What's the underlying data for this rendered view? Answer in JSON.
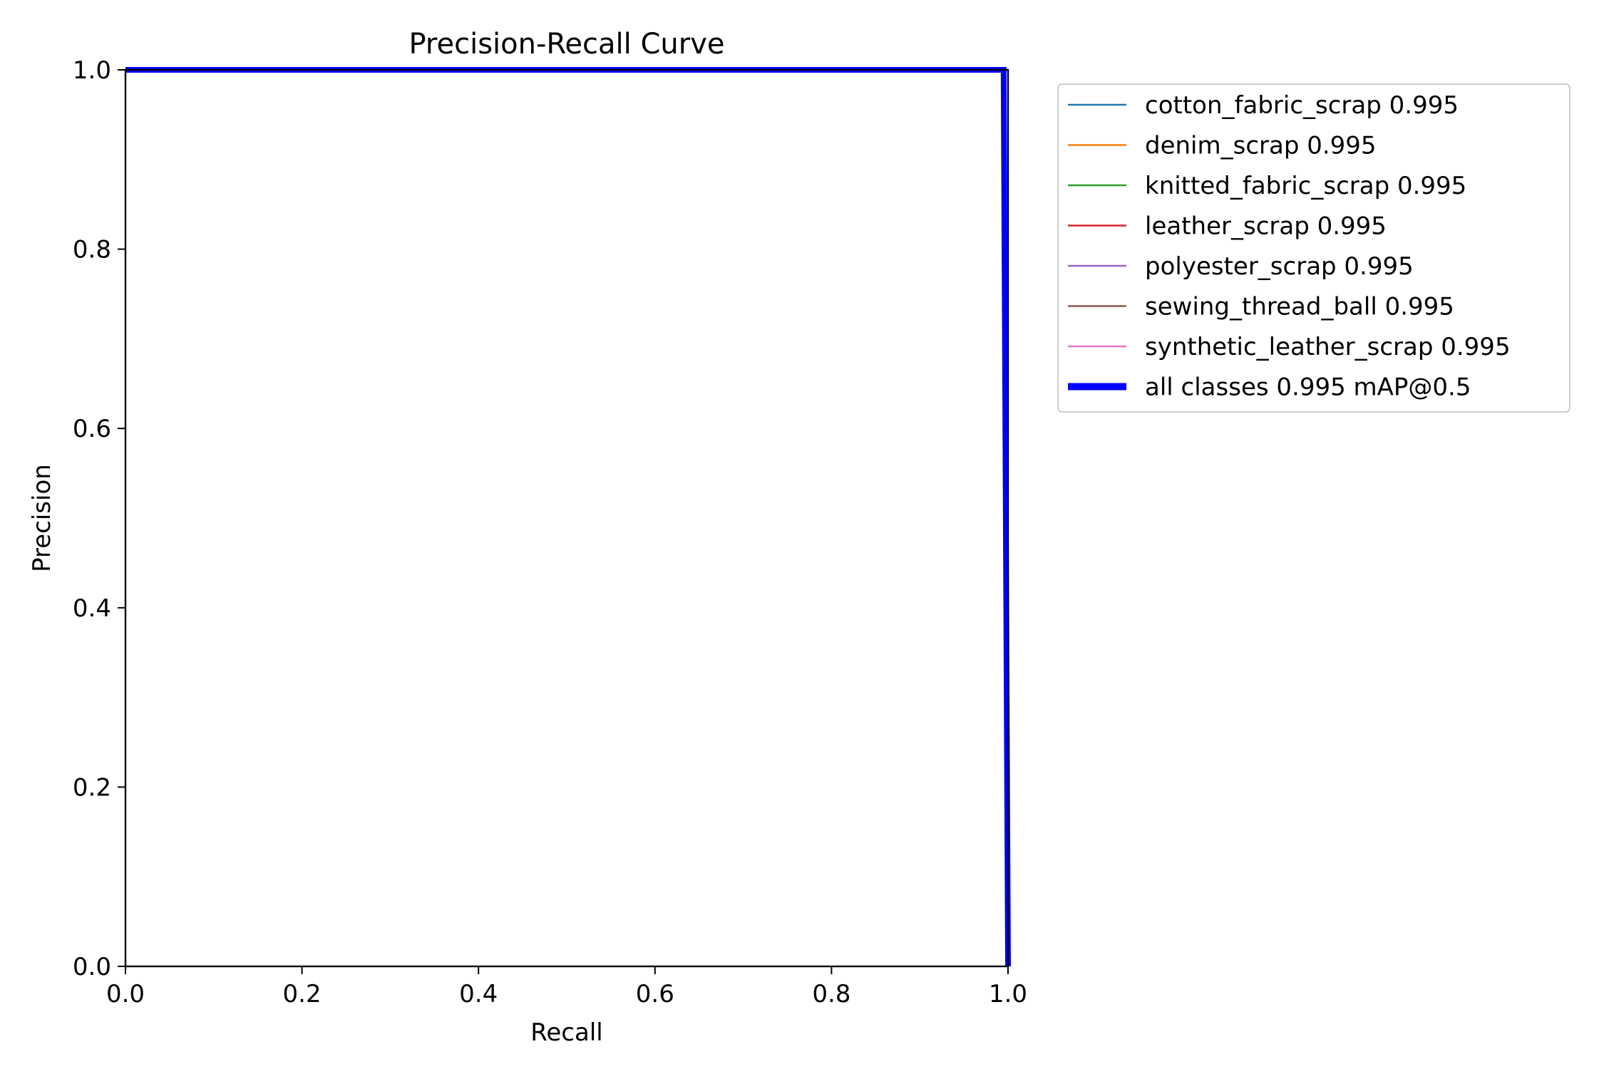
{
  "chart_data": {
    "type": "line",
    "title": "Precision-Recall Curve",
    "xlabel": "Recall",
    "ylabel": "Precision",
    "xlim": [
      0.0,
      1.0
    ],
    "ylim": [
      0.0,
      1.0
    ],
    "xticks": [
      "0.0",
      "0.2",
      "0.4",
      "0.6",
      "0.8",
      "1.0"
    ],
    "yticks": [
      "0.0",
      "0.2",
      "0.4",
      "0.6",
      "0.8",
      "1.0"
    ],
    "grid": false,
    "legend_position": "outside-right",
    "series": [
      {
        "name": "cotton_fabric_scrap 0.995",
        "color": "#1f77b4",
        "x": [
          0.0,
          0.995,
          1.0
        ],
        "y": [
          1.0,
          1.0,
          0.0
        ]
      },
      {
        "name": "denim_scrap 0.995",
        "color": "#ff7f0e",
        "x": [
          0.0,
          0.995,
          1.0
        ],
        "y": [
          1.0,
          1.0,
          0.0
        ]
      },
      {
        "name": "knitted_fabric_scrap 0.995",
        "color": "#2ca02c",
        "x": [
          0.0,
          0.995,
          1.0
        ],
        "y": [
          1.0,
          1.0,
          0.0
        ]
      },
      {
        "name": "leather_scrap 0.995",
        "color": "#d62728",
        "x": [
          0.0,
          0.995,
          1.0
        ],
        "y": [
          1.0,
          1.0,
          0.0
        ]
      },
      {
        "name": "polyester_scrap 0.995",
        "color": "#9467bd",
        "x": [
          0.0,
          0.995,
          1.0
        ],
        "y": [
          1.0,
          1.0,
          0.0
        ]
      },
      {
        "name": "sewing_thread_ball 0.995",
        "color": "#8c564b",
        "x": [
          0.0,
          0.995,
          1.0
        ],
        "y": [
          1.0,
          1.0,
          0.0
        ]
      },
      {
        "name": "synthetic_leather_scrap 0.995",
        "color": "#e377c2",
        "x": [
          0.0,
          0.995,
          1.0
        ],
        "y": [
          1.0,
          1.0,
          0.0
        ]
      },
      {
        "name": "all classes 0.995 mAP@0.5",
        "color": "#0000ff",
        "bold": true,
        "x": [
          0.0,
          0.995,
          1.0
        ],
        "y": [
          1.0,
          1.0,
          0.0
        ]
      }
    ]
  }
}
